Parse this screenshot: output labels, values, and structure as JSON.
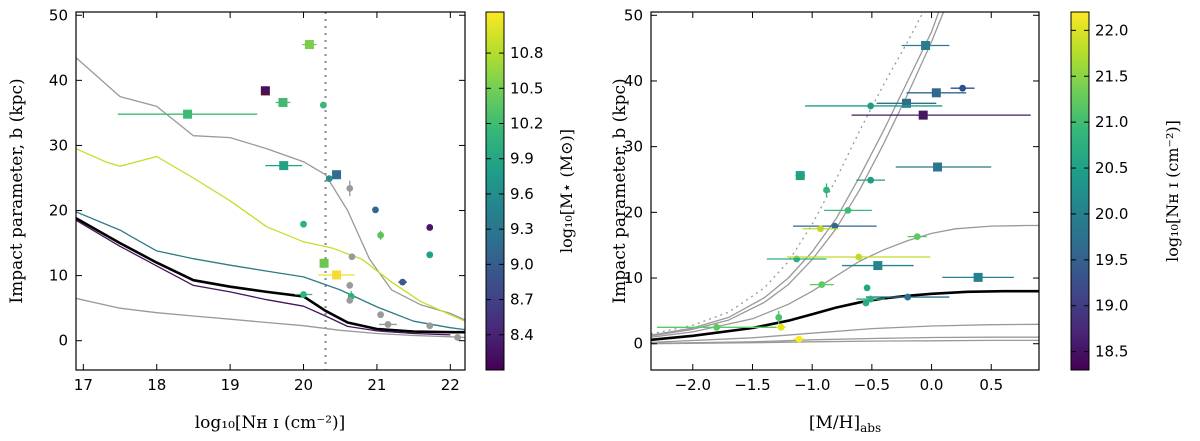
{
  "chart_data": [
    {
      "type": "scatter",
      "title": "",
      "xlabel": "log₁₀[Nʜ ɪ (cm⁻²)]",
      "ylabel": "Impact parameter, b (kpc)",
      "xlim": [
        16.9,
        22.2
      ],
      "ylim": [
        -4.5,
        50.5
      ],
      "xticks": [
        "17",
        "18",
        "19",
        "20",
        "21",
        "22"
      ],
      "yticks": [
        "0",
        "10",
        "20",
        "30",
        "40",
        "50"
      ],
      "reference_line_x": 20.3,
      "colorbar": {
        "label": "log₁₀[M⋆ (M⊙)]",
        "range": [
          8.1,
          11.15
        ],
        "ticks": [
          "8.4",
          "8.7",
          "9.0",
          "9.3",
          "9.6",
          "9.9",
          "10.2",
          "10.5",
          "10.8"
        ]
      },
      "curves": [
        {
          "name": "upper-grey",
          "color": "#999999",
          "width": 1.3,
          "x": [
            16.9,
            17.5,
            18.0,
            18.5,
            19.0,
            19.5,
            20.0,
            20.3,
            20.6,
            20.9,
            21.2,
            21.6,
            22.0,
            22.2
          ],
          "y": [
            43.5,
            37.5,
            36,
            31.5,
            31.2,
            29.5,
            27.5,
            25.5,
            20,
            12.5,
            7.8,
            5.5,
            4.2,
            3.2
          ]
        },
        {
          "name": "yellow-green",
          "color": "#c8dc28",
          "width": 1.3,
          "x": [
            16.9,
            17.3,
            17.5,
            18.0,
            18.5,
            19.0,
            19.5,
            20.0,
            20.4,
            20.8,
            21.2,
            21.6,
            22.0,
            22.2
          ],
          "y": [
            29.5,
            27.5,
            26.8,
            28.3,
            25,
            21.5,
            17.5,
            15.2,
            14.2,
            12.5,
            9,
            6,
            4,
            3
          ]
        },
        {
          "name": "teal",
          "color": "#2f7b8a",
          "width": 1.3,
          "x": [
            16.9,
            17.5,
            18.0,
            18.5,
            19.0,
            19.5,
            20.0,
            20.5,
            21.0,
            21.5,
            22.0,
            22.2
          ],
          "y": [
            19.8,
            17,
            13.8,
            12.6,
            11.6,
            10.7,
            9.8,
            7.8,
            5.2,
            3,
            2,
            1.7
          ]
        },
        {
          "name": "median-black",
          "color": "#000000",
          "width": 2.6,
          "x": [
            16.9,
            17.5,
            18.0,
            18.5,
            19.0,
            19.5,
            20.0,
            20.3,
            20.6,
            21.0,
            21.5,
            22.0,
            22.2
          ],
          "y": [
            18.8,
            15,
            12,
            9.3,
            8.3,
            7.5,
            6.8,
            4.6,
            2.8,
            1.8,
            1.4,
            1.3,
            1.3
          ]
        },
        {
          "name": "purple",
          "color": "#46135f",
          "width": 1.3,
          "x": [
            16.9,
            17.5,
            18.0,
            18.5,
            19.0,
            19.5,
            20.0,
            20.3,
            20.6,
            21.0,
            21.5,
            22.0
          ],
          "y": [
            18.5,
            14.5,
            11.5,
            8.5,
            7.5,
            6.3,
            5.3,
            3.8,
            2.2,
            1.5,
            1.1,
            0.9
          ]
        },
        {
          "name": "lower-grey",
          "color": "#999999",
          "width": 1.3,
          "x": [
            16.9,
            17.5,
            18.0,
            18.5,
            19.0,
            19.5,
            20.0,
            20.5,
            21.0,
            21.5,
            22.0,
            22.2
          ],
          "y": [
            6.5,
            5,
            4.3,
            3.8,
            3.3,
            2.8,
            2.3,
            1.6,
            1.1,
            0.8,
            0.6,
            0.5
          ]
        }
      ],
      "points": [
        {
          "x": 18.42,
          "y": 34.8,
          "xerr": [
            0.95,
            0.95
          ],
          "color": "#3dbb74",
          "shape": "square"
        },
        {
          "x": 19.48,
          "y": 38.3,
          "xerr": [
            0.05,
            0.05
          ],
          "color": "#f2d832",
          "shape": "square"
        },
        {
          "x": 19.48,
          "y": 38.4,
          "color": "#45105e",
          "shape": "square"
        },
        {
          "x": 19.72,
          "y": 36.6,
          "xerr": [
            0.1,
            0.1
          ],
          "color": "#44b872",
          "shape": "square"
        },
        {
          "x": 20.08,
          "y": 45.5,
          "xerr": [
            0.1,
            0.1
          ],
          "color": "#7acc4c",
          "shape": "square"
        },
        {
          "x": 20.27,
          "y": 36.2,
          "yerr": [
            0.5,
            0.5
          ],
          "color": "#3cb673",
          "shape": "circle"
        },
        {
          "x": 19.73,
          "y": 26.9,
          "xerr": [
            0.25,
            0.25
          ],
          "color": "#23a283",
          "shape": "square"
        },
        {
          "x": 20.45,
          "y": 25.5,
          "color": "#2e6e8e",
          "shape": "square"
        },
        {
          "x": 20.35,
          "y": 24.9,
          "color": "#2d8c8b",
          "shape": "circle"
        },
        {
          "x": 20.63,
          "y": 23.4,
          "yerr": [
            1.2,
            1.2
          ],
          "color": "#9a9a9a",
          "shape": "circle"
        },
        {
          "x": 20.98,
          "y": 20.1,
          "color": "#30678e",
          "shape": "circle"
        },
        {
          "x": 20.0,
          "y": 17.9,
          "color": "#2fb37d",
          "shape": "circle"
        },
        {
          "x": 21.72,
          "y": 17.4,
          "color": "#49166a",
          "shape": "circle"
        },
        {
          "x": 21.05,
          "y": 16.2,
          "yerr": [
            0.7,
            0.7
          ],
          "color": "#5ec25e",
          "shape": "circle"
        },
        {
          "x": 20.66,
          "y": 12.9,
          "color": "#9a9a9a",
          "shape": "circle"
        },
        {
          "x": 21.72,
          "y": 13.2,
          "color": "#23a083",
          "shape": "circle"
        },
        {
          "x": 20.28,
          "y": 11.9,
          "yerr": [
            0.7,
            0.7
          ],
          "color": "#6cc64f",
          "shape": "square"
        },
        {
          "x": 20.45,
          "y": 10.1,
          "xerr": [
            0.25,
            0.25
          ],
          "color": "#f4dc35",
          "shape": "square"
        },
        {
          "x": 21.35,
          "y": 9.0,
          "xerr": [
            0.06,
            0.06
          ],
          "color": "#39588c",
          "shape": "circle"
        },
        {
          "x": 20.0,
          "y": 7.1,
          "xerr": [
            0.12,
            0.12
          ],
          "color": "#2fb57c",
          "shape": "circle"
        },
        {
          "x": 20.63,
          "y": 8.5,
          "color": "#9a9a9a",
          "shape": "circle"
        },
        {
          "x": 20.65,
          "y": 6.8,
          "yerr": [
            0.8,
            0.8
          ],
          "color": "#2db17b",
          "shape": "circle"
        },
        {
          "x": 20.63,
          "y": 6.2,
          "color": "#9a9a9a",
          "shape": "circle"
        },
        {
          "x": 21.05,
          "y": 4.0,
          "color": "#9a9a9a",
          "shape": "circle"
        },
        {
          "x": 21.15,
          "y": 2.5,
          "xerr": [
            0.12,
            0.12
          ],
          "color": "#9a9a9a",
          "shape": "circle"
        },
        {
          "x": 21.72,
          "y": 2.3,
          "color": "#9a9a9a",
          "shape": "circle"
        },
        {
          "x": 22.1,
          "y": 0.5,
          "color": "#9a9a9a",
          "shape": "circle"
        }
      ]
    },
    {
      "type": "scatter",
      "title": "",
      "xlabel": "[M/H]ₐᵦₛ",
      "xlabel_main": "[M/H]",
      "xlabel_sub": "abs",
      "ylabel": "Impact parameter, b (kpc)",
      "xlim": [
        -2.35,
        0.9
      ],
      "ylim": [
        -4.0,
        50.5
      ],
      "xticks": [
        "−2.0",
        "−1.5",
        "−1.0",
        "−0.5",
        "0.0",
        "0.5"
      ],
      "yticks": [
        "0",
        "10",
        "20",
        "30",
        "40",
        "50"
      ],
      "colorbar": {
        "label": "log₁₀[Nʜ ɪ (cm⁻²)]",
        "range": [
          18.3,
          22.2
        ],
        "ticks": [
          "18.5",
          "19.0",
          "19.5",
          "20.0",
          "20.5",
          "21.0",
          "21.5",
          "22.0"
        ]
      },
      "curves": [
        {
          "name": "dotted-grey",
          "color": "#999999",
          "width": 1.3,
          "dash": "2,4",
          "x": [
            -2.35,
            -2.0,
            -1.7,
            -1.4,
            -1.2,
            -1.0,
            -0.8,
            -0.6,
            -0.4,
            -0.2,
            -0.07
          ],
          "y": [
            1.5,
            2.8,
            4.8,
            8.5,
            12.5,
            18.2,
            25,
            32.5,
            39.5,
            46,
            50.5
          ]
        },
        {
          "name": "grey-steep-1",
          "color": "#999999",
          "width": 1.3,
          "x": [
            -2.35,
            -2.0,
            -1.7,
            -1.4,
            -1.2,
            -1.0,
            -0.8,
            -0.6,
            -0.4,
            -0.2,
            0.0,
            0.06
          ],
          "y": [
            1.3,
            2.4,
            4.0,
            7.0,
            10,
            14,
            19,
            25.5,
            32.5,
            40,
            47.5,
            50.5
          ]
        },
        {
          "name": "grey-steep-2",
          "color": "#999999",
          "width": 1.3,
          "x": [
            -2.35,
            -2.0,
            -1.7,
            -1.4,
            -1.2,
            -1.0,
            -0.8,
            -0.6,
            -0.4,
            -0.2,
            0.0,
            0.1
          ],
          "y": [
            1.2,
            2.2,
            3.6,
            6.3,
            9,
            12.8,
            17.5,
            23.5,
            30.5,
            38,
            46,
            50.5
          ]
        },
        {
          "name": "grey-mid",
          "color": "#999999",
          "width": 1.3,
          "x": [
            -2.35,
            -2.0,
            -1.5,
            -1.2,
            -1.0,
            -0.8,
            -0.6,
            -0.4,
            -0.2,
            0.0,
            0.2,
            0.5,
            0.8,
            0.9
          ],
          "y": [
            1.0,
            1.8,
            3.8,
            6.0,
            8.0,
            10.3,
            12.6,
            14.3,
            15.7,
            16.8,
            17.5,
            17.9,
            18.0,
            18.0
          ]
        },
        {
          "name": "median-black",
          "color": "#000000",
          "width": 2.6,
          "x": [
            -2.35,
            -2.0,
            -1.5,
            -1.2,
            -1.0,
            -0.8,
            -0.6,
            -0.4,
            -0.2,
            0.0,
            0.3,
            0.6,
            0.9
          ],
          "y": [
            0.6,
            1.2,
            2.4,
            3.5,
            4.5,
            5.5,
            6.3,
            6.9,
            7.3,
            7.6,
            7.9,
            8.0,
            8.0
          ]
        },
        {
          "name": "grey-low-1",
          "color": "#999999",
          "width": 1.3,
          "x": [
            -2.35,
            -1.5,
            -1.0,
            -0.5,
            0.0,
            0.5,
            0.9
          ],
          "y": [
            0.2,
            0.9,
            1.6,
            2.3,
            2.7,
            2.9,
            2.95
          ]
        },
        {
          "name": "grey-low-2",
          "color": "#999999",
          "width": 1.3,
          "x": [
            -2.35,
            -1.5,
            -1.0,
            -0.5,
            0.0,
            0.5,
            0.9
          ],
          "y": [
            0.05,
            0.3,
            0.6,
            0.8,
            0.95,
            1.0,
            1.0
          ]
        },
        {
          "name": "grey-low-3",
          "color": "#999999",
          "width": 1.3,
          "x": [
            -2.35,
            -1.5,
            -1.0,
            -0.5,
            0.0,
            0.5,
            0.9
          ],
          "y": [
            0.0,
            0.15,
            0.3,
            0.4,
            0.45,
            0.5,
            0.5
          ]
        }
      ],
      "points": [
        {
          "x": -0.05,
          "y": 45.4,
          "xerr": [
            0.2,
            0.2
          ],
          "color": "#2c7c8e",
          "shape": "square"
        },
        {
          "x": 0.26,
          "y": 38.9,
          "xerr": [
            0.1,
            0.1
          ],
          "color": "#334e8c",
          "shape": "circle"
        },
        {
          "x": 0.04,
          "y": 38.2,
          "xerr": [
            0.25,
            0.25
          ],
          "color": "#2f6a8e",
          "shape": "square"
        },
        {
          "x": -0.21,
          "y": 36.6,
          "xerr": [
            0.25,
            0.25
          ],
          "color": "#2d708e",
          "shape": "square"
        },
        {
          "x": -0.51,
          "y": 36.2,
          "xerr": [
            0.55,
            0.6
          ],
          "color": "#1f9d89",
          "shape": "circle"
        },
        {
          "x": -0.07,
          "y": 34.8,
          "xerr": [
            0.6,
            0.9
          ],
          "color": "#45185f",
          "shape": "square"
        },
        {
          "x": 0.05,
          "y": 26.9,
          "xerr": [
            0.35,
            0.45
          ],
          "color": "#2a778e",
          "shape": "square"
        },
        {
          "x": -1.1,
          "y": 25.6,
          "xerr": [
            0.04,
            0.04
          ],
          "color": "#22a285",
          "shape": "square"
        },
        {
          "x": -0.51,
          "y": 24.9,
          "xerr": [
            0.12,
            0.12
          ],
          "color": "#239b85",
          "shape": "circle"
        },
        {
          "x": -0.88,
          "y": 23.4,
          "yerr": [
            1.0,
            1.0
          ],
          "color": "#2fb47c",
          "shape": "circle"
        },
        {
          "x": -0.7,
          "y": 20.3,
          "xerr": [
            0.2,
            0.2
          ],
          "color": "#3bbb75",
          "shape": "circle"
        },
        {
          "x": -0.81,
          "y": 17.9,
          "xerr": [
            0.35,
            0.35
          ],
          "color": "#31658e",
          "shape": "circle"
        },
        {
          "x": -0.93,
          "y": 17.5,
          "xerr": [
            0.15,
            0.15
          ],
          "color": "#bfd72a",
          "shape": "circle"
        },
        {
          "x": -0.12,
          "y": 16.3,
          "xerr": [
            0.08,
            0.08
          ],
          "color": "#5dc863",
          "shape": "circle"
        },
        {
          "x": -1.13,
          "y": 12.9,
          "xerr": [
            0.25,
            0.25
          ],
          "color": "#28ae80",
          "shape": "circle"
        },
        {
          "x": -0.61,
          "y": 13.2,
          "xerr": [
            0.6,
            0.6
          ],
          "color": "#c2da2a",
          "shape": "circle"
        },
        {
          "x": -0.45,
          "y": 11.9,
          "xerr": [
            0.3,
            0.3
          ],
          "color": "#25858e",
          "shape": "square"
        },
        {
          "x": 0.39,
          "y": 10.1,
          "xerr": [
            0.3,
            0.3
          ],
          "color": "#26818e",
          "shape": "square"
        },
        {
          "x": -0.92,
          "y": 9.0,
          "xerr": [
            0.1,
            0.1
          ],
          "color": "#5ec962",
          "shape": "circle"
        },
        {
          "x": -0.54,
          "y": 8.5,
          "color": "#22a785",
          "shape": "circle"
        },
        {
          "x": -0.2,
          "y": 7.1,
          "xerr": [
            0.35,
            0.35
          ],
          "color": "#2d718e",
          "shape": "circle"
        },
        {
          "x": -0.51,
          "y": 6.8,
          "xerr": [
            0.12,
            0.12
          ],
          "color": "#2ab07f",
          "shape": "circle"
        },
        {
          "x": -0.55,
          "y": 6.2,
          "color": "#27ad81",
          "shape": "circle"
        },
        {
          "x": -1.28,
          "y": 4.0,
          "yerr": [
            1.0,
            1.0
          ],
          "color": "#4ac16d",
          "shape": "circle"
        },
        {
          "x": -1.26,
          "y": 2.5,
          "xerr": [
            0.04,
            0.04
          ],
          "color": "#dfe318",
          "shape": "circle"
        },
        {
          "x": -1.8,
          "y": 2.5,
          "xerr": [
            0.5,
            0.5
          ],
          "color": "#5ec962",
          "shape": "circle"
        },
        {
          "x": -1.11,
          "y": 0.7,
          "xerr": [
            0.05,
            0.05
          ],
          "color": "#fde725",
          "shape": "circle"
        }
      ]
    }
  ],
  "colormap": [
    "#440154",
    "#482878",
    "#3e4989",
    "#31688e",
    "#26828e",
    "#1f9e89",
    "#35b779",
    "#6ece58",
    "#b5de2b",
    "#fde725"
  ]
}
